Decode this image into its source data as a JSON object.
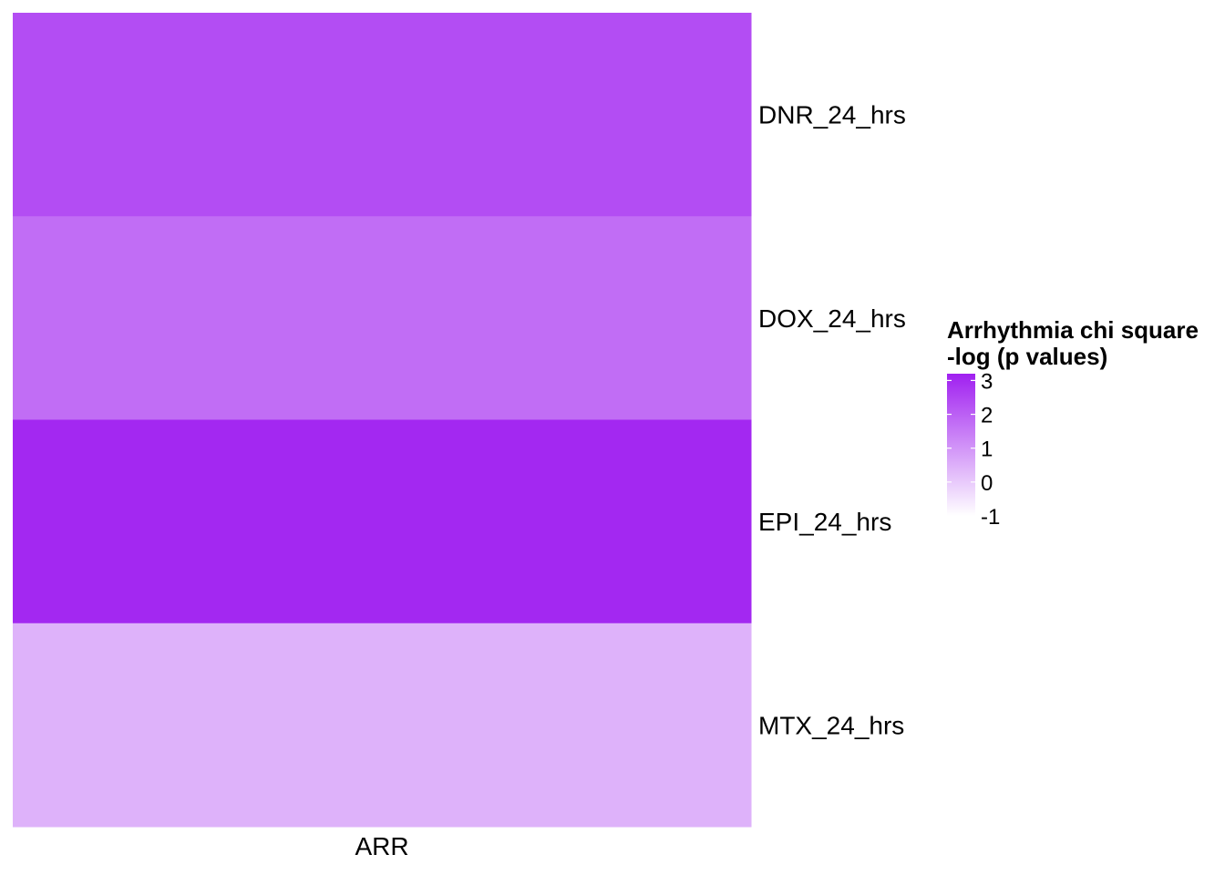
{
  "chart_data": {
    "type": "heatmap",
    "columns": [
      "ARR"
    ],
    "rows": [
      "DNR_24_hrs",
      "DOX_24_hrs",
      "EPI_24_hrs",
      "MTX_24_hrs"
    ],
    "values": [
      [
        2.35
      ],
      [
        1.75
      ],
      [
        3.05
      ],
      [
        0.45
      ]
    ],
    "legend": {
      "title_line1": "Arrhythmia chi square",
      "title_line2": "-log (p values)",
      "ticks": [
        3,
        2,
        1,
        0,
        -1
      ],
      "tick_labels": [
        "3",
        "2",
        "1",
        "0",
        "-1"
      ],
      "range": [
        -1,
        3.2
      ],
      "placement": "right",
      "color_low": "#ffffff",
      "color_high": "#a020f0"
    }
  }
}
